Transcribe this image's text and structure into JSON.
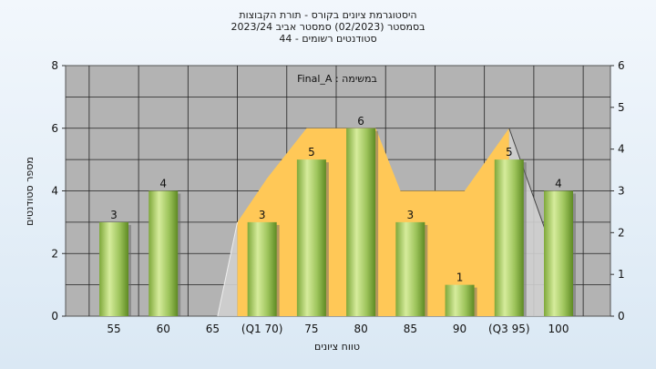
{
  "chart_data": {
    "type": "bar",
    "title_lines": [
      "היסטוגרמת ציונים בקורס - תורת הקבוצות",
      "בסמסטר (02/2023) סמסטר אביב 2023/24",
      "סטודנטים רשומים - 44"
    ],
    "categories": [
      "55",
      "60",
      "65",
      "(Q1 70)",
      "75",
      "80",
      "85",
      "90",
      "(Q3 95)",
      "100"
    ],
    "values": [
      3,
      4,
      0,
      3,
      5,
      6,
      3,
      1,
      5,
      4
    ],
    "value_labels": [
      "3",
      "4",
      "",
      "3",
      "5",
      "6",
      "3",
      "1",
      "5",
      "4"
    ],
    "xlabel": "טווח ציונים",
    "ylabel": "מספר סטודנטים",
    "ylim": [
      0,
      8
    ],
    "y_ticks": [
      "0",
      "2",
      "4",
      "6",
      "8"
    ],
    "y2lim": [
      0,
      6
    ],
    "y2_ticks": [
      "0",
      "1",
      "2",
      "3",
      "4",
      "5",
      "6"
    ],
    "annotation": "במשימה : Final_A",
    "grid": true,
    "colors": {
      "plot_bg": "#b3b3b3",
      "area": "#ffc857",
      "bar_light": "#d6ec9c",
      "bar_mid": "#9cc35a",
      "bar_dark": "#5e8a23",
      "gray_tri": "#cfcfcf"
    }
  }
}
